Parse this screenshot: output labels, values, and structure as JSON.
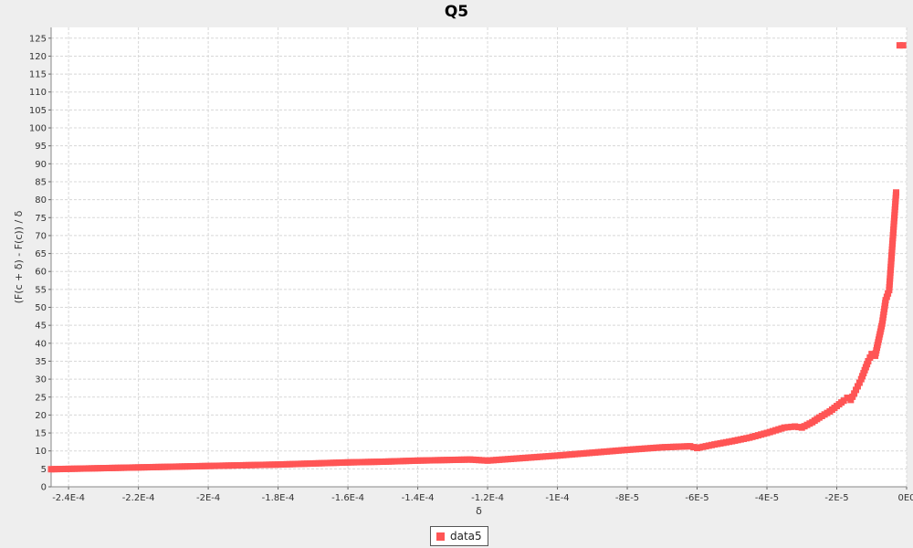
{
  "chart_data": {
    "type": "scatter",
    "title": "Q5",
    "xlabel": "δ",
    "ylabel": "(F(c + δ) - F(c)) / δ",
    "xlim": [
      -0.000245,
      0.0
    ],
    "ylim": [
      0,
      128
    ],
    "x_ticks": [
      -0.00024,
      -0.00022,
      -0.0002,
      -0.00018,
      -0.00016,
      -0.00014,
      -0.00012,
      -0.0001,
      -8e-05,
      -6e-05,
      -4e-05,
      -2e-05,
      0
    ],
    "x_tick_labels": [
      "-2.4E-4",
      "-2.2E-4",
      "-2E-4",
      "-1.8E-4",
      "-1.6E-4",
      "-1.4E-4",
      "-1.2E-4",
      "-1E-4",
      "-8E-5",
      "-6E-5",
      "-4E-5",
      "-2E-5",
      "0E0"
    ],
    "y_ticks": [
      0,
      5,
      10,
      15,
      20,
      25,
      30,
      35,
      40,
      45,
      50,
      55,
      60,
      65,
      70,
      75,
      80,
      85,
      90,
      95,
      100,
      105,
      110,
      115,
      120,
      125
    ],
    "grid": true,
    "legend_position": "bottom-center",
    "series": [
      {
        "name": "data5",
        "color": "#ff5555",
        "marker": "square",
        "x": [
          -0.000245,
          -0.00024,
          -0.00023,
          -0.00022,
          -0.00021,
          -0.0002,
          -0.00019,
          -0.00018,
          -0.00017,
          -0.00016,
          -0.00015,
          -0.00014,
          -0.00013,
          -0.000125,
          -0.00012,
          -0.00011,
          -0.0001,
          -9e-05,
          -8e-05,
          -7e-05,
          -6.2e-05,
          -6e-05,
          -5.5e-05,
          -5e-05,
          -4.5e-05,
          -4e-05,
          -3.5e-05,
          -3.2e-05,
          -3e-05,
          -2.7e-05,
          -2.5e-05,
          -2.2e-05,
          -2e-05,
          -1.8e-05,
          -1.7e-05,
          -1.6e-05,
          -1.5e-05,
          -1.4e-05,
          -1.3e-05,
          -1.2e-05,
          -1.1e-05,
          -1e-05,
          -9e-06,
          -8e-06,
          -7e-06,
          -6e-06,
          -5e-06,
          -4e-06,
          -3e-06,
          -2e-06,
          -1e-06
        ],
        "y": [
          4.9,
          5.0,
          5.2,
          5.4,
          5.6,
          5.8,
          6.0,
          6.2,
          6.5,
          6.8,
          7.0,
          7.3,
          7.5,
          7.6,
          7.3,
          8.0,
          8.7,
          9.5,
          10.3,
          11.0,
          11.3,
          10.8,
          11.8,
          12.7,
          13.7,
          15.0,
          16.5,
          16.8,
          16.5,
          18.0,
          19.3,
          21.0,
          22.5,
          24.0,
          24.8,
          24.2,
          26.0,
          28.0,
          30.0,
          32.5,
          35.0,
          37.0,
          36.5,
          41.0,
          45.5,
          52.0,
          54.8,
          68.5,
          82.0,
          123.0,
          123.0
        ]
      }
    ]
  }
}
